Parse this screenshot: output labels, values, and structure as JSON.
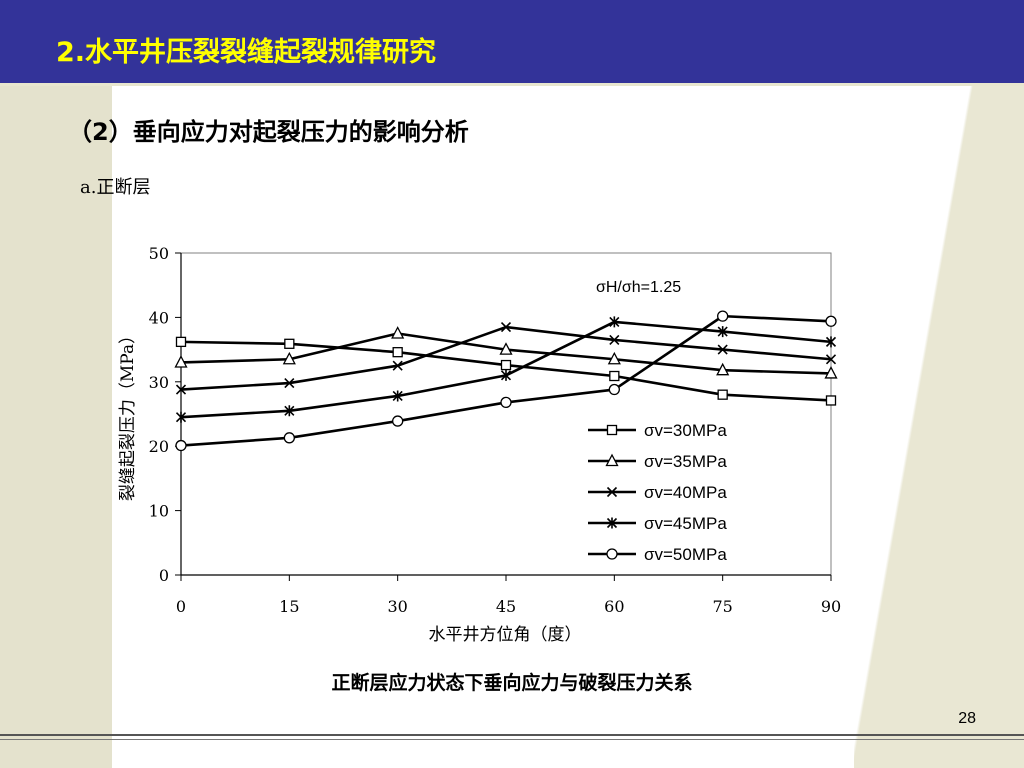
{
  "slide": {
    "title": "2.水平井压裂裂缝起裂规律研究",
    "subtitle": "（2）垂向应力对起裂压力的影响分析",
    "section": "a.正断层",
    "caption": "正断层应力状态下垂向应力与破裂压力关系",
    "page_number": "28"
  },
  "colors": {
    "title_bar": "#333399",
    "title_text": "#ffff00",
    "series_line": "#000000"
  },
  "chart_data": {
    "type": "line",
    "annotation": "σH/σh=1.25",
    "xlabel": "水平井方位角（度）",
    "ylabel": "裂缝起裂压力（MPa）",
    "xlim": [
      0,
      90
    ],
    "ylim": [
      0,
      50
    ],
    "xticks": [
      0,
      15,
      30,
      45,
      60,
      75,
      90
    ],
    "yticks": [
      0,
      10,
      20,
      30,
      40,
      50
    ],
    "x": [
      0,
      15,
      30,
      45,
      60,
      75,
      90
    ],
    "grid": false,
    "legend_position": "bottom-right",
    "series": [
      {
        "name": "σv=30MPa",
        "marker": "square",
        "values": [
          36.2,
          35.9,
          34.6,
          32.6,
          30.9,
          28.0,
          27.1
        ]
      },
      {
        "name": "σv=35MPa",
        "marker": "triangle",
        "values": [
          33.0,
          33.5,
          37.5,
          35.0,
          33.5,
          31.8,
          31.3
        ]
      },
      {
        "name": "σv=40MPa",
        "marker": "x",
        "values": [
          28.8,
          29.8,
          32.5,
          38.5,
          36.5,
          35.0,
          33.5
        ]
      },
      {
        "name": "σv=45MPa",
        "marker": "star",
        "values": [
          24.5,
          25.5,
          27.8,
          31.0,
          39.3,
          37.8,
          36.2
        ]
      },
      {
        "name": "σv=50MPa",
        "marker": "circle",
        "values": [
          20.1,
          21.3,
          23.9,
          26.8,
          28.8,
          40.2,
          39.4
        ]
      }
    ]
  }
}
